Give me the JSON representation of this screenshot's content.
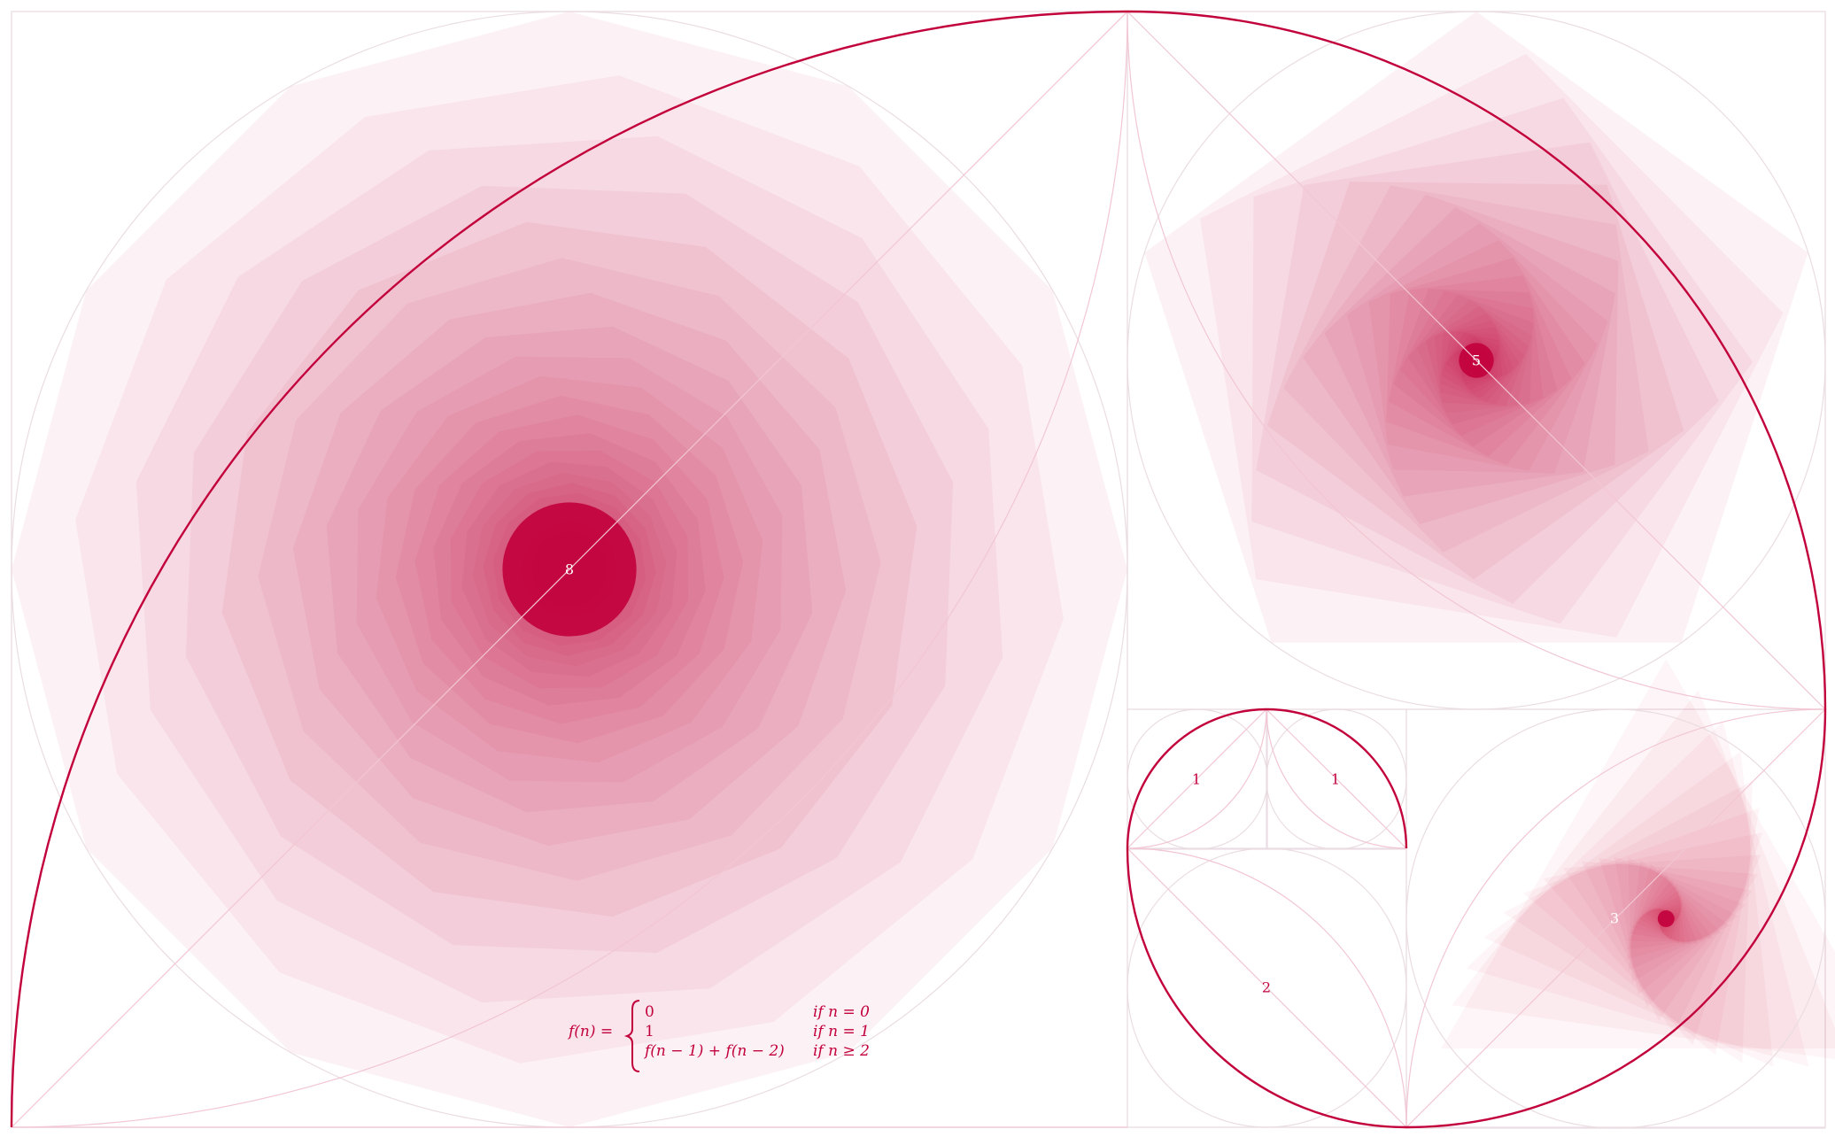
{
  "colors": {
    "accent": "#c2003c",
    "light_line": "#f2c6d3",
    "grid": "#eadde2"
  },
  "squares": [
    {
      "label": "8",
      "fill_color": "#c2003c"
    },
    {
      "label": "5",
      "fill_color": "#c2003c"
    },
    {
      "label": "3",
      "fill_color": "#c2003c"
    },
    {
      "label": "2",
      "fill_color": "#c2003c"
    },
    {
      "label": "1",
      "fill_color": "#c2003c"
    },
    {
      "label": "1",
      "fill_color": "#c2003c"
    }
  ],
  "formula": {
    "lhs": "f(n) =",
    "cases": [
      {
        "value": "0",
        "condition": "if n = 0"
      },
      {
        "value": "1",
        "condition": "if n = 1"
      },
      {
        "value": "f(n − 1) + f(n − 2)",
        "condition": "if n ≥ 2"
      }
    ]
  }
}
